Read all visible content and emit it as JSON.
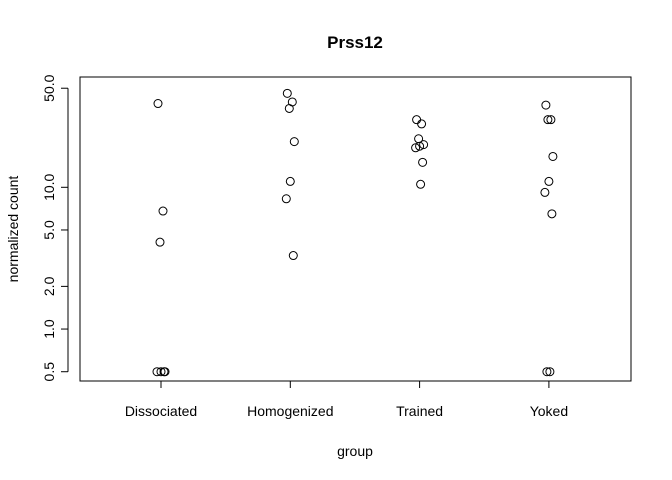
{
  "chart_data": {
    "type": "scatter",
    "title": "Prss12",
    "xlabel": "group",
    "ylabel": "normalized count",
    "y_scale": "log",
    "ylim": [
      0.43,
      60
    ],
    "categories": [
      "Dissociated",
      "Homogenized",
      "Trained",
      "Yoked"
    ],
    "y_ticks": [
      {
        "value": 0.5,
        "label": "0.5"
      },
      {
        "value": 1,
        "label": "1.0"
      },
      {
        "value": 2,
        "label": "2.0"
      },
      {
        "value": 5,
        "label": "5.0"
      },
      {
        "value": 10,
        "label": "10.0"
      },
      {
        "value": 50,
        "label": "50.0"
      }
    ],
    "points": [
      {
        "group": "Dissociated",
        "y": 39
      },
      {
        "group": "Dissociated",
        "y": 6.8
      },
      {
        "group": "Dissociated",
        "y": 4.1
      },
      {
        "group": "Dissociated",
        "y": 0.5
      },
      {
        "group": "Dissociated",
        "y": 0.5
      },
      {
        "group": "Dissociated",
        "y": 0.5
      },
      {
        "group": "Dissociated",
        "y": 0.5
      },
      {
        "group": "Homogenized",
        "y": 46
      },
      {
        "group": "Homogenized",
        "y": 40
      },
      {
        "group": "Homogenized",
        "y": 36
      },
      {
        "group": "Homogenized",
        "y": 21
      },
      {
        "group": "Homogenized",
        "y": 11
      },
      {
        "group": "Homogenized",
        "y": 8.3
      },
      {
        "group": "Homogenized",
        "y": 3.3
      },
      {
        "group": "Trained",
        "y": 30
      },
      {
        "group": "Trained",
        "y": 28
      },
      {
        "group": "Trained",
        "y": 22
      },
      {
        "group": "Trained",
        "y": 20
      },
      {
        "group": "Trained",
        "y": 19.5
      },
      {
        "group": "Trained",
        "y": 19
      },
      {
        "group": "Trained",
        "y": 15
      },
      {
        "group": "Trained",
        "y": 10.5
      },
      {
        "group": "Yoked",
        "y": 38
      },
      {
        "group": "Yoked",
        "y": 30
      },
      {
        "group": "Yoked",
        "y": 30
      },
      {
        "group": "Yoked",
        "y": 16.5
      },
      {
        "group": "Yoked",
        "y": 11
      },
      {
        "group": "Yoked",
        "y": 9.2
      },
      {
        "group": "Yoked",
        "y": 6.5
      },
      {
        "group": "Yoked",
        "y": 0.5
      },
      {
        "group": "Yoked",
        "y": 0.5
      }
    ],
    "grid": false,
    "marker": "open-circle"
  }
}
